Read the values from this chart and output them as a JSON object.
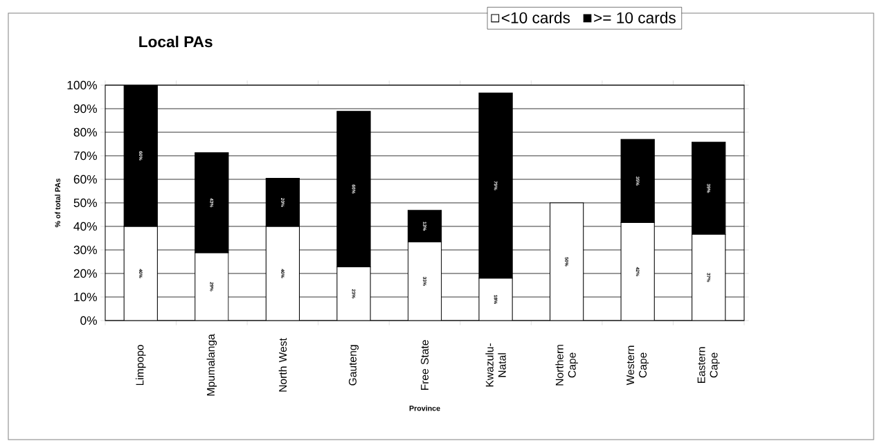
{
  "chart_data": {
    "type": "bar",
    "stacked": true,
    "title": "Local PAs",
    "xlabel": "Province",
    "ylabel": "% of total PAs",
    "categories": [
      "Limpopo",
      "Mpumalanga",
      "North West",
      "Gauteng",
      "Free State",
      "Kwazulu-Natal",
      "Northern Cape",
      "Western Cape",
      "Eastern Cape"
    ],
    "series": [
      {
        "name": "<10 cards",
        "color": "#ffffff",
        "values": [
          40,
          28.8,
          40,
          22.8,
          33.4,
          18,
          50,
          41.6,
          36.6
        ],
        "value_labels": [
          "40%",
          "29%",
          "40%",
          "23%",
          "33%",
          "18%",
          "50%",
          "42%",
          "37%"
        ]
      },
      {
        "name": ">= 10 cards",
        "color": "#000000",
        "values": [
          60,
          42.5,
          20.4,
          66.1,
          13.4,
          78.7,
          null,
          35.4,
          39.2
        ],
        "value_labels": [
          "60%",
          "43%",
          "20%",
          "66%",
          "13%",
          "79%",
          null,
          "35%",
          "39%"
        ]
      }
    ],
    "ylim": [
      0,
      100
    ],
    "yticks": [
      {
        "value": 0,
        "label": "0%"
      },
      {
        "value": 10,
        "label": "10%"
      },
      {
        "value": 20,
        "label": "20%"
      },
      {
        "value": 30,
        "label": "30%"
      },
      {
        "value": 40,
        "label": "40%"
      },
      {
        "value": 50,
        "label": "50%"
      },
      {
        "value": 60,
        "label": "60%"
      },
      {
        "value": 70,
        "label": "70%"
      },
      {
        "value": 80,
        "label": "80%"
      },
      {
        "value": 90,
        "label": "90%"
      },
      {
        "value": 100,
        "label": "100%"
      }
    ],
    "grid": "y",
    "legend": "top right"
  }
}
